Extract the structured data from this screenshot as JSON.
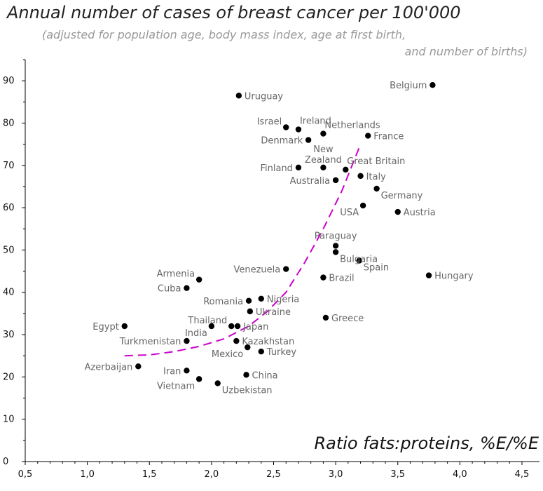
{
  "chart_data": {
    "type": "scatter",
    "title": "Annual number of cases of breast cancer per 100'000",
    "subtitle_line1": "(adjusted for population age, body mass index, age at first birth,",
    "subtitle_line2": "and number of births)",
    "xlabel": "Ratio fats:proteins, %E/%E",
    "ylabel": "",
    "xlim": [
      0.5,
      4.5
    ],
    "ylim": [
      0,
      95
    ],
    "xticks": [
      0.5,
      1.0,
      1.5,
      2.0,
      2.5,
      3.0,
      3.5,
      4.0,
      4.5
    ],
    "xtick_labels": [
      "0,5",
      "1,0",
      "1,5",
      "2,0",
      "2,5",
      "3,0",
      "3,5",
      "4,0",
      "4,5"
    ],
    "yticks": [
      0,
      10,
      20,
      30,
      40,
      50,
      60,
      70,
      80,
      90
    ],
    "ytick_labels": [
      "0",
      "10",
      "20",
      "30",
      "40",
      "50",
      "60",
      "70",
      "80",
      "90"
    ],
    "grid": false,
    "colors": {
      "points": "#000000",
      "labels": "#666666",
      "trend": "#cc00cc",
      "axis": "#000000"
    },
    "points": [
      {
        "label": "Uruguay",
        "x": 2.22,
        "y": 86.5,
        "side": "right"
      },
      {
        "label": "Belgium",
        "x": 3.78,
        "y": 89,
        "side": "left"
      },
      {
        "label": "Israel",
        "x": 2.6,
        "y": 79,
        "side": "left-up"
      },
      {
        "label": "Ireland",
        "x": 2.7,
        "y": 78.5,
        "side": "right-up"
      },
      {
        "label": "Netherlands",
        "x": 2.9,
        "y": 77.5,
        "side": "right-up"
      },
      {
        "label": "Denmark",
        "x": 2.78,
        "y": 76,
        "side": "left"
      },
      {
        "label": "France",
        "x": 3.26,
        "y": 77,
        "side": "right"
      },
      {
        "label": "New Zealand",
        "x": 2.9,
        "y": 69.5,
        "side": "up"
      },
      {
        "label": "Finland",
        "x": 2.7,
        "y": 69.5,
        "side": "left"
      },
      {
        "label": "Great Britain",
        "x": 3.08,
        "y": 69,
        "side": "right-up"
      },
      {
        "label": "Italy",
        "x": 3.2,
        "y": 67.5,
        "side": "right"
      },
      {
        "label": "Australia",
        "x": 3.0,
        "y": 66.5,
        "side": "left"
      },
      {
        "label": "Germany",
        "x": 3.33,
        "y": 64.5,
        "side": "right-down"
      },
      {
        "label": "USA",
        "x": 3.22,
        "y": 60.5,
        "side": "left-down"
      },
      {
        "label": "Austria",
        "x": 3.5,
        "y": 59,
        "side": "right"
      },
      {
        "label": "Paraguay",
        "x": 3.0,
        "y": 51,
        "side": "up"
      },
      {
        "label": "Bulgaria",
        "x": 3.0,
        "y": 49.5,
        "side": "right-down"
      },
      {
        "label": "Spain",
        "x": 3.19,
        "y": 47.5,
        "side": "right-down"
      },
      {
        "label": "Venezuela",
        "x": 2.6,
        "y": 45.5,
        "side": "left"
      },
      {
        "label": "Hungary",
        "x": 3.75,
        "y": 44,
        "side": "right"
      },
      {
        "label": "Brazil",
        "x": 2.9,
        "y": 43.5,
        "side": "right"
      },
      {
        "label": "Armenia",
        "x": 1.9,
        "y": 43,
        "side": "left-up"
      },
      {
        "label": "Cuba",
        "x": 1.8,
        "y": 41,
        "side": "left"
      },
      {
        "label": "Nigeria",
        "x": 2.4,
        "y": 38.5,
        "side": "right"
      },
      {
        "label": "Romania",
        "x": 2.3,
        "y": 38,
        "side": "left"
      },
      {
        "label": "Ukraine",
        "x": 2.31,
        "y": 35.5,
        "side": "right"
      },
      {
        "label": "Greece",
        "x": 2.92,
        "y": 34,
        "side": "right"
      },
      {
        "label": "Egypt",
        "x": 1.3,
        "y": 32,
        "side": "left"
      },
      {
        "label": "Thailand",
        "x": 2.16,
        "y": 32,
        "side": "left-up"
      },
      {
        "label": "Japan",
        "x": 2.21,
        "y": 32,
        "side": "right"
      },
      {
        "label": "India",
        "x": 2.0,
        "y": 32,
        "side": "left-down"
      },
      {
        "label": "Turkmenistan",
        "x": 1.8,
        "y": 28.5,
        "side": "left"
      },
      {
        "label": "Kazakhstan",
        "x": 2.2,
        "y": 28.5,
        "side": "right"
      },
      {
        "label": "Mexico",
        "x": 2.29,
        "y": 27,
        "side": "left-down"
      },
      {
        "label": "Turkey",
        "x": 2.4,
        "y": 26,
        "side": "right"
      },
      {
        "label": "Azerbaijan",
        "x": 1.41,
        "y": 22.5,
        "side": "left"
      },
      {
        "label": "Iran",
        "x": 1.8,
        "y": 21.5,
        "side": "left"
      },
      {
        "label": "China",
        "x": 2.28,
        "y": 20.5,
        "side": "right"
      },
      {
        "label": "Vietnam",
        "x": 1.9,
        "y": 19.5,
        "side": "left-down"
      },
      {
        "label": "Uzbekistan",
        "x": 2.05,
        "y": 18.5,
        "side": "right-down"
      }
    ],
    "trend_line": {
      "style": "dashed",
      "x": [
        1.3,
        1.5,
        1.7,
        1.9,
        2.1,
        2.3,
        2.45,
        2.6,
        2.75,
        2.9,
        3.05,
        3.2
      ],
      "y": [
        25,
        25.2,
        26,
        27.2,
        29,
        32,
        35.5,
        40,
        47,
        55,
        64,
        75
      ]
    }
  }
}
